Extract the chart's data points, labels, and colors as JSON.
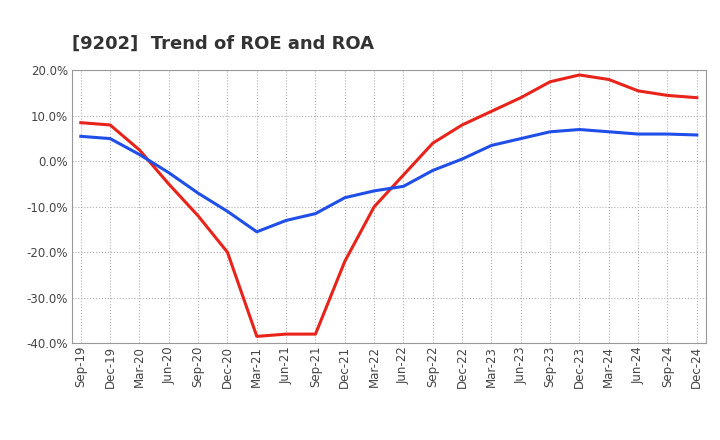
{
  "title": "[9202]  Trend of ROE and ROA",
  "x_labels": [
    "Sep-19",
    "Dec-19",
    "Mar-20",
    "Jun-20",
    "Sep-20",
    "Dec-20",
    "Mar-21",
    "Jun-21",
    "Sep-21",
    "Dec-21",
    "Mar-22",
    "Jun-22",
    "Sep-22",
    "Dec-22",
    "Mar-23",
    "Jun-23",
    "Sep-23",
    "Dec-23",
    "Mar-24",
    "Jun-24",
    "Sep-24",
    "Dec-24"
  ],
  "ROE": [
    8.5,
    8.0,
    2.5,
    -5.0,
    -12.0,
    -20.0,
    -38.5,
    -38.0,
    -38.0,
    -22.0,
    -10.0,
    -3.0,
    4.0,
    8.0,
    11.0,
    14.0,
    17.5,
    19.0,
    18.0,
    15.5,
    14.5,
    14.0
  ],
  "ROA": [
    5.5,
    5.0,
    1.5,
    -2.5,
    -7.0,
    -11.0,
    -15.5,
    -13.0,
    -11.5,
    -8.0,
    -6.5,
    -5.5,
    -2.0,
    0.5,
    3.5,
    5.0,
    6.5,
    7.0,
    6.5,
    6.0,
    6.0,
    5.8
  ],
  "ROE_color": "#e8231a",
  "ROA_color": "#1f4fe8",
  "ylim": [
    -40.0,
    20.0
  ],
  "yticks": [
    -40.0,
    -30.0,
    -20.0,
    -10.0,
    0.0,
    10.0,
    20.0
  ],
  "grid_color": "#b0b0b0",
  "background_color": "#ffffff",
  "line_width": 2.2,
  "title_fontsize": 13,
  "tick_fontsize": 8.5
}
